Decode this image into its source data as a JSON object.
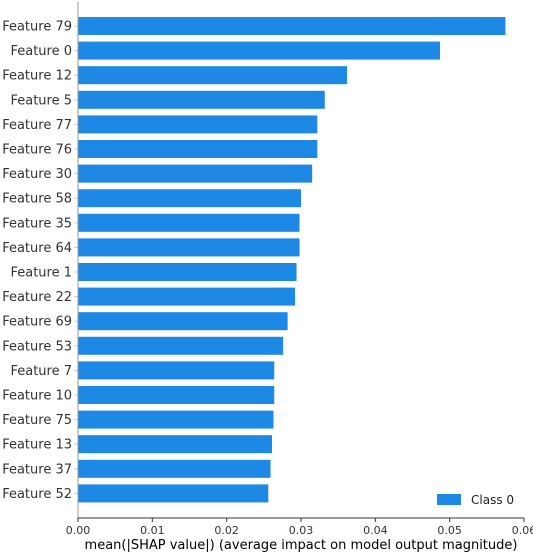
{
  "chart_data": {
    "type": "bar",
    "orientation": "horizontal",
    "categories": [
      "Feature 79",
      "Feature 0",
      "Feature 12",
      "Feature 5",
      "Feature 77",
      "Feature 76",
      "Feature 30",
      "Feature 58",
      "Feature 35",
      "Feature 64",
      "Feature 1",
      "Feature 22",
      "Feature 69",
      "Feature 53",
      "Feature 7",
      "Feature 10",
      "Feature 75",
      "Feature 13",
      "Feature 37",
      "Feature 52"
    ],
    "series": [
      {
        "name": "Class 0",
        "color": "#1e88e5",
        "values": [
          0.0575,
          0.0487,
          0.0362,
          0.0332,
          0.0322,
          0.0322,
          0.0315,
          0.03,
          0.0298,
          0.0298,
          0.0294,
          0.0292,
          0.0282,
          0.0276,
          0.0264,
          0.0264,
          0.0263,
          0.0261,
          0.0259,
          0.0256
        ]
      }
    ],
    "xlabel": "mean(|SHAP value|) (average impact on model output magnitude)",
    "xlim": [
      0,
      0.06
    ],
    "xticks": [
      0,
      0.01,
      0.02,
      0.03,
      0.04,
      0.05,
      0.06
    ],
    "xtick_labels": [
      "0.00",
      "0.01",
      "0.02",
      "0.03",
      "0.04",
      "0.05",
      "0.06"
    ],
    "grid": false,
    "legend": {
      "position": "bottom-right"
    }
  }
}
